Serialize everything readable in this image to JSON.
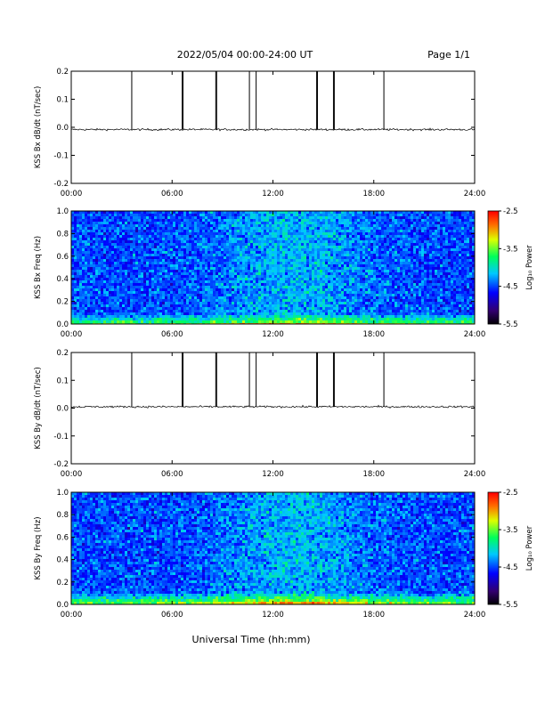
{
  "header": {
    "title": "2022/05/04  00:00-24:00 UT",
    "page": "Page 1/1"
  },
  "xaxis": {
    "title": "Universal Time (hh:mm)",
    "ticks": [
      "00:00",
      "06:00",
      "12:00",
      "18:00",
      "24:00"
    ]
  },
  "chart_data": [
    {
      "type": "line",
      "ylabel": "KSS Bx dB/dt (nT/sec)",
      "xlim": [
        0,
        24
      ],
      "ylim": [
        -0.2,
        0.2
      ],
      "yticks": [
        "0.2",
        "0.1",
        "0.0",
        "-0.1",
        "-0.2"
      ],
      "xticks": [
        "00:00",
        "06:00",
        "12:00",
        "18:00",
        "24:00"
      ],
      "baseline": -0.008,
      "spikes_hours": [
        3.6,
        6.6,
        6.65,
        8.6,
        8.65,
        10.6,
        11.0,
        14.6,
        14.65,
        15.6,
        15.65,
        18.6
      ]
    },
    {
      "type": "heatmap",
      "ylabel": "KSS Bx Freq (Hz)",
      "xlim": [
        0,
        24
      ],
      "ylim": [
        0,
        1
      ],
      "yticks": [
        "1.0",
        "0.8",
        "0.6",
        "0.4",
        "0.2",
        "0.0"
      ],
      "xticks": [
        "00:00",
        "06:00",
        "12:00",
        "18:00",
        "24:00"
      ],
      "colorbar": {
        "label": "Log₁₀ Power",
        "ticks": [
          "-2.5",
          "-3.5",
          "-4.5",
          "-5.5"
        ],
        "range": [
          -5.5,
          -2.5
        ]
      }
    },
    {
      "type": "line",
      "ylabel": "KSS By dB/dt (nT/sec)",
      "xlim": [
        0,
        24
      ],
      "ylim": [
        -0.2,
        0.2
      ],
      "yticks": [
        "0.2",
        "0.1",
        "0.0",
        "-0.1",
        "-0.2"
      ],
      "xticks": [
        "00:00",
        "06:00",
        "12:00",
        "18:00",
        "24:00"
      ],
      "baseline": 0.005,
      "spikes_hours": [
        3.6,
        6.6,
        6.65,
        8.6,
        8.65,
        10.6,
        11.0,
        14.6,
        14.65,
        15.6,
        15.65,
        18.6
      ]
    },
    {
      "type": "heatmap",
      "ylabel": "KSS By Freq (Hz)",
      "xlim": [
        0,
        24
      ],
      "ylim": [
        0,
        1
      ],
      "yticks": [
        "1.0",
        "0.8",
        "0.6",
        "0.4",
        "0.2",
        "0.0"
      ],
      "xticks": [
        "00:00",
        "06:00",
        "12:00",
        "18:00",
        "24:00"
      ],
      "colorbar": {
        "label": "Log₁₀ Power",
        "ticks": [
          "-2.5",
          "-3.5",
          "-4.5",
          "-5.5"
        ],
        "range": [
          -5.5,
          -2.5
        ]
      }
    }
  ]
}
